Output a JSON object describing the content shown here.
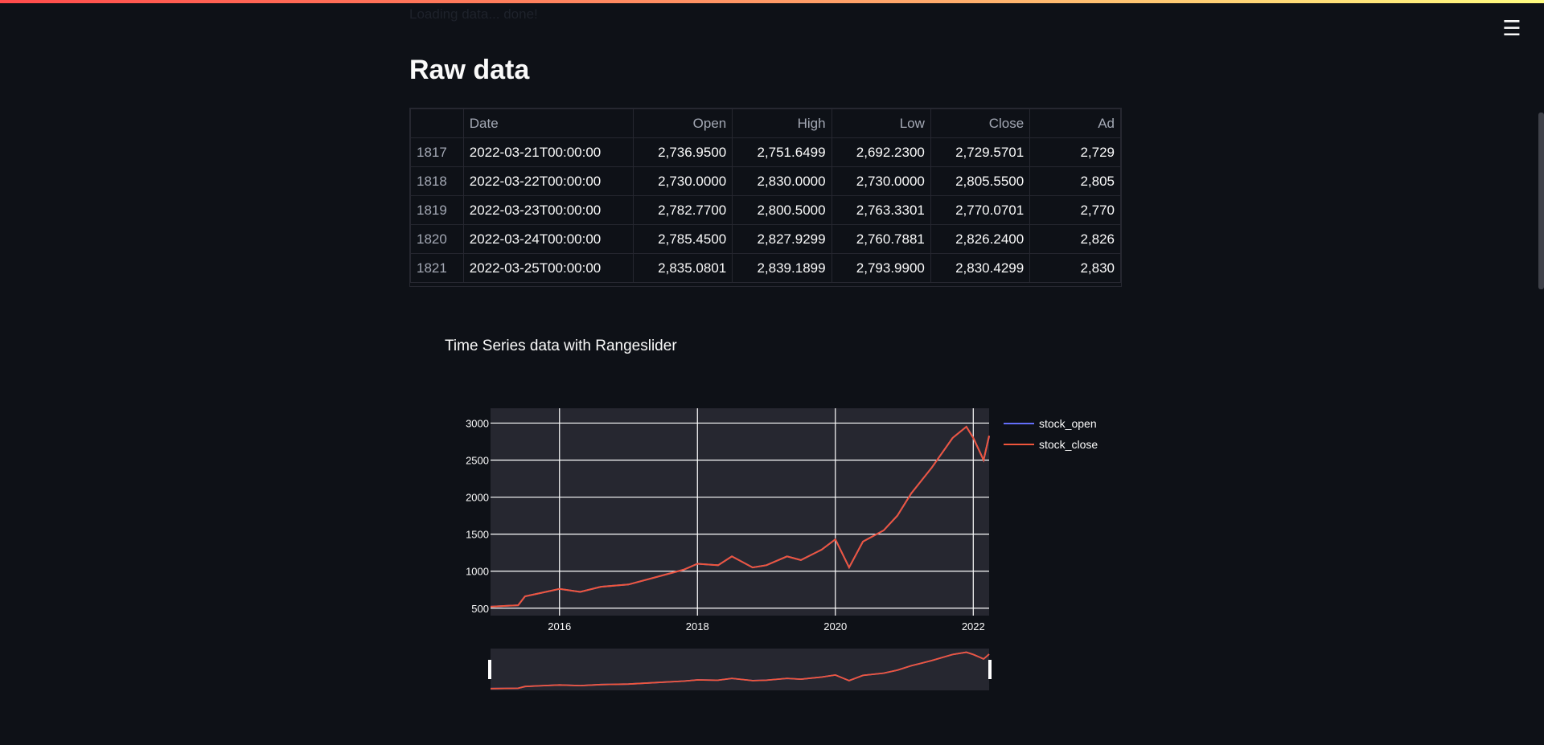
{
  "app": {
    "menu_icon": "hamburger-menu-icon",
    "status_text": "Loading data... done!"
  },
  "page": {
    "title": "Raw data"
  },
  "table": {
    "columns": [
      "",
      "Date",
      "Open",
      "High",
      "Low",
      "Close",
      "Ad"
    ],
    "rows": [
      [
        "1817",
        "2022-03-21T00:00:00",
        "2,736.9500",
        "2,751.6499",
        "2,692.2300",
        "2,729.5701",
        "2,729"
      ],
      [
        "1818",
        "2022-03-22T00:00:00",
        "2,730.0000",
        "2,830.0000",
        "2,730.0000",
        "2,805.5500",
        "2,805"
      ],
      [
        "1819",
        "2022-03-23T00:00:00",
        "2,782.7700",
        "2,800.5000",
        "2,763.3301",
        "2,770.0701",
        "2,770"
      ],
      [
        "1820",
        "2022-03-24T00:00:00",
        "2,785.4500",
        "2,827.9299",
        "2,760.7881",
        "2,826.2400",
        "2,826"
      ],
      [
        "1821",
        "2022-03-25T00:00:00",
        "2,835.0801",
        "2,839.1899",
        "2,793.9900",
        "2,830.4299",
        "2,830"
      ]
    ]
  },
  "chart_data": {
    "type": "line",
    "title": "Time Series data with Rangeslider",
    "xlabel": "",
    "ylabel": "",
    "xlim": [
      2015.0,
      2022.23
    ],
    "ylim": [
      400,
      3200
    ],
    "x_ticks": [
      2016,
      2018,
      2020,
      2022
    ],
    "y_ticks": [
      500,
      1000,
      1500,
      2000,
      2500,
      3000
    ],
    "grid": true,
    "legend_position": "top-right",
    "rangeslider": true,
    "series": [
      {
        "name": "stock_open",
        "color": "#636efa",
        "x": [
          2015.0,
          2015.4,
          2015.5,
          2015.7,
          2016.0,
          2016.3,
          2016.6,
          2017.0,
          2017.4,
          2017.8,
          2018.0,
          2018.3,
          2018.5,
          2018.8,
          2019.0,
          2019.3,
          2019.5,
          2019.8,
          2020.0,
          2020.2,
          2020.4,
          2020.7,
          2020.9,
          2021.1,
          2021.4,
          2021.7,
          2021.9,
          2022.0,
          2022.1,
          2022.15,
          2022.23
        ],
        "y": [
          520,
          540,
          660,
          700,
          760,
          720,
          790,
          820,
          920,
          1020,
          1100,
          1080,
          1200,
          1050,
          1080,
          1200,
          1150,
          1290,
          1430,
          1050,
          1400,
          1550,
          1750,
          2050,
          2400,
          2800,
          2950,
          2800,
          2600,
          2500,
          2820
        ]
      },
      {
        "name": "stock_close",
        "color": "#ef553b",
        "x": [
          2015.0,
          2015.4,
          2015.5,
          2015.7,
          2016.0,
          2016.3,
          2016.6,
          2017.0,
          2017.4,
          2017.8,
          2018.0,
          2018.3,
          2018.5,
          2018.8,
          2019.0,
          2019.3,
          2019.5,
          2019.8,
          2020.0,
          2020.2,
          2020.4,
          2020.7,
          2020.9,
          2021.1,
          2021.4,
          2021.7,
          2021.9,
          2022.0,
          2022.1,
          2022.15,
          2022.23
        ],
        "y": [
          520,
          540,
          660,
          700,
          760,
          720,
          790,
          820,
          920,
          1020,
          1100,
          1080,
          1200,
          1050,
          1080,
          1200,
          1150,
          1290,
          1430,
          1050,
          1400,
          1550,
          1750,
          2050,
          2400,
          2800,
          2950,
          2800,
          2600,
          2500,
          2830
        ]
      }
    ]
  },
  "colors": {
    "background": "#0e1117",
    "plot_bg": "#262730",
    "accent_gradient_start": "#ff4b4b",
    "accent_gradient_end": "#fffd80"
  }
}
